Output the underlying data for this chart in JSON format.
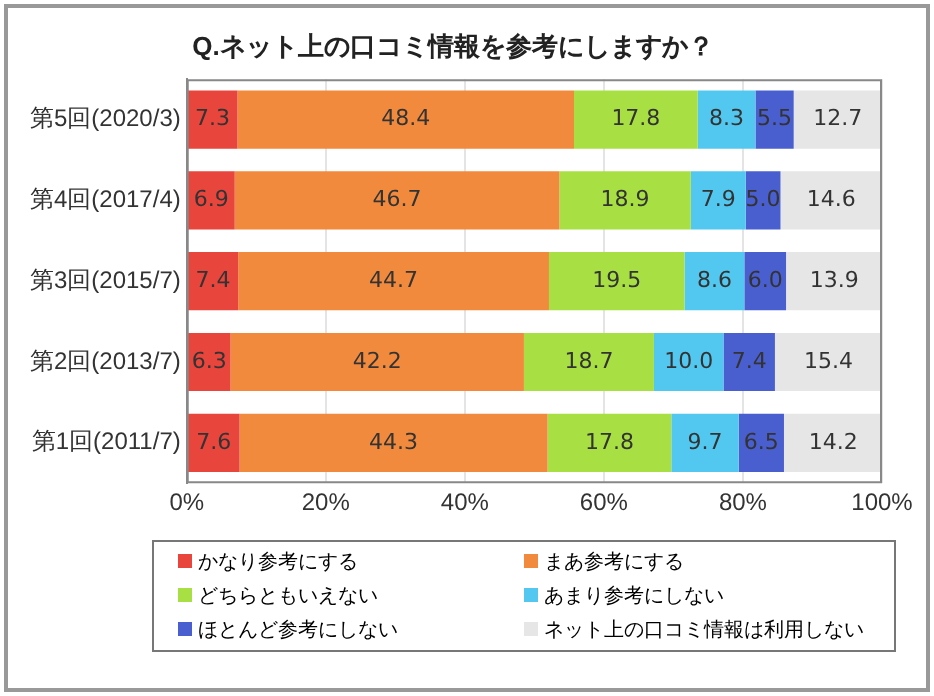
{
  "chart_data": {
    "type": "bar",
    "orientation": "horizontal",
    "stacked": true,
    "title": "Q.ネット上の口コミ情報を参考にしますか？",
    "categories": [
      "第5回(2020/3)",
      "第4回(2017/4)",
      "第3回(2015/7)",
      "第2回(2013/7)",
      "第1回(2011/7)"
    ],
    "series": [
      {
        "name": "かなり参考にする",
        "color": "#e8453c",
        "values": [
          7.3,
          6.9,
          7.4,
          6.3,
          7.6
        ],
        "value_labels": [
          "7.3",
          "6.9",
          "7.4",
          "6.3",
          "7.6"
        ]
      },
      {
        "name": "まあ参考にする",
        "color": "#f28a3e",
        "values": [
          48.4,
          46.7,
          44.7,
          42.2,
          44.3
        ],
        "value_labels": [
          "48.4",
          "46.7",
          "44.7",
          "42.2",
          "44.3"
        ]
      },
      {
        "name": "どちらともいえない",
        "color": "#a8e044",
        "values": [
          17.8,
          18.9,
          19.5,
          18.7,
          17.8
        ],
        "value_labels": [
          "17.8",
          "18.9",
          "19.5",
          "18.7",
          "17.8"
        ]
      },
      {
        "name": "あまり参考にしない",
        "color": "#52c8f0",
        "values": [
          8.3,
          7.9,
          8.6,
          10,
          9.7
        ],
        "value_labels": [
          "8.3",
          "7.9",
          "8.6",
          "10.0",
          "9.7"
        ]
      },
      {
        "name": "ほとんど参考にしない",
        "color": "#4a5fcf",
        "values": [
          5.5,
          5,
          6,
          7.4,
          6.5
        ],
        "value_labels": [
          "5.5",
          "5.0",
          "6.0",
          "7.4",
          "6.5"
        ]
      },
      {
        "name": "ネット上の口コミ情報は利用しない",
        "color": "#e6e6e6",
        "values": [
          12.7,
          14.6,
          13.9,
          15.4,
          14.2
        ],
        "value_labels": [
          "12.7",
          "14.6",
          "13.9",
          "15.4",
          "14.2"
        ]
      }
    ],
    "xlim": [
      0,
      100
    ],
    "xticks": [
      {
        "value": 0,
        "label": "0%"
      },
      {
        "value": 20,
        "label": "20%"
      },
      {
        "value": 40,
        "label": "40%"
      },
      {
        "value": 60,
        "label": "60%"
      },
      {
        "value": 80,
        "label": "80%"
      },
      {
        "value": 100,
        "label": "100%"
      }
    ],
    "grid": "x",
    "legend": "bottom"
  }
}
